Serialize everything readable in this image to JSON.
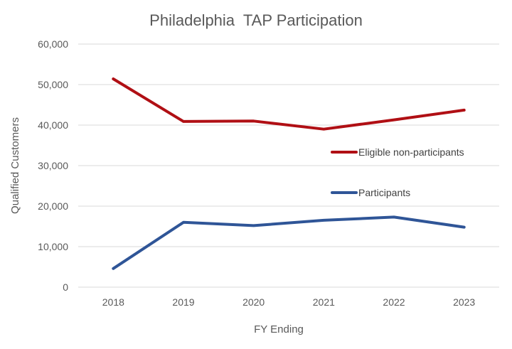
{
  "chart_data": {
    "type": "line",
    "title": "Philadelphia  TAP Participation",
    "xlabel": "FY Ending",
    "ylabel": "Qualified Customers",
    "categories": [
      "2018",
      "2019",
      "2020",
      "2021",
      "2022",
      "2023"
    ],
    "ylim": [
      0,
      60000
    ],
    "yticks": [
      0,
      10000,
      20000,
      30000,
      40000,
      50000,
      60000
    ],
    "ytick_labels": [
      "0",
      "10,000",
      "20,000",
      "30,000",
      "40,000",
      "50,000",
      "60,000"
    ],
    "grid": true,
    "legend_position": "right-middle",
    "series": [
      {
        "name": "Eligible non-participants",
        "color": "#b00f14",
        "values": [
          51400,
          40900,
          41000,
          39000,
          41300,
          43700
        ]
      },
      {
        "name": "Participants",
        "color": "#2f5597",
        "values": [
          4600,
          16000,
          15200,
          16500,
          17300,
          14800
        ]
      }
    ]
  }
}
